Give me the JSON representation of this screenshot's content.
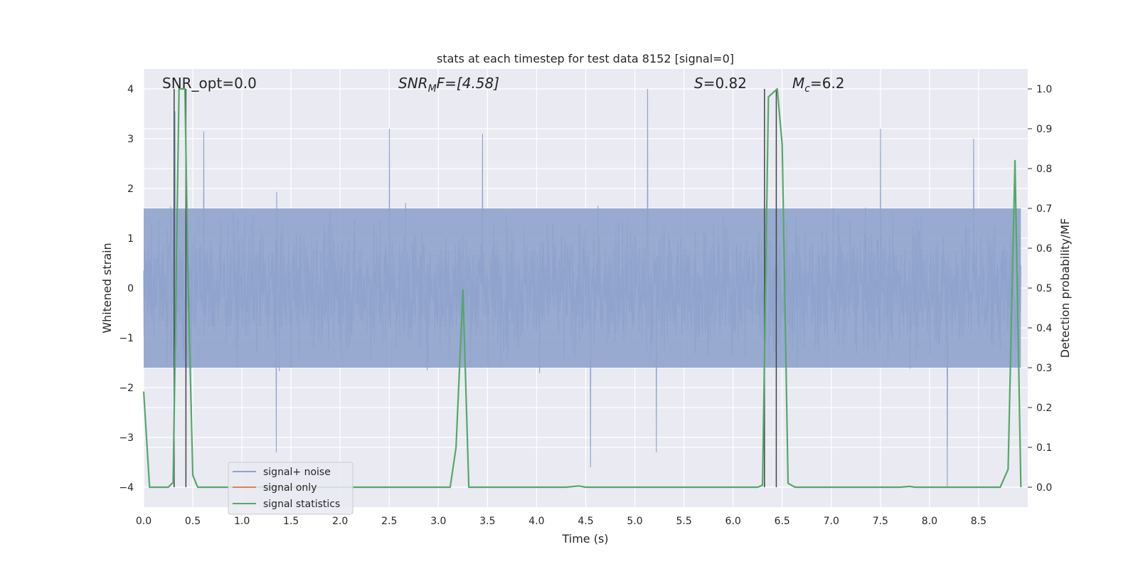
{
  "chart_data": {
    "type": "line",
    "title": "stats at each timestep for test data 8152 [signal=0]",
    "xlabel": "Time (s)",
    "ylabel_left": "Whitened strain",
    "ylabel_right": "Detection probability/MF",
    "xlim": [
      0.0,
      9.0
    ],
    "ylim_left": [
      -4.4,
      4.4
    ],
    "ylim_right": [
      -0.05,
      1.05
    ],
    "x_ticks": [
      0.0,
      0.5,
      1.0,
      1.5,
      2.0,
      2.5,
      3.0,
      3.5,
      4.0,
      4.5,
      5.0,
      5.5,
      6.0,
      6.5,
      7.0,
      7.5,
      8.0,
      8.5
    ],
    "x_tick_labels": [
      "0.0",
      "0.5",
      "1.0",
      "1.5",
      "2.0",
      "2.5",
      "3.0",
      "3.5",
      "4.0",
      "4.5",
      "5.0",
      "5.5",
      "6.0",
      "6.5",
      "7.0",
      "7.5",
      "8.0",
      "8.5"
    ],
    "y_left_ticks": [
      4,
      3,
      2,
      1,
      0,
      -1,
      -2,
      -3,
      -4
    ],
    "y_left_tick_labels": [
      "4",
      "3",
      "2",
      "1",
      "0",
      "−1",
      "−2",
      "−3",
      "−4"
    ],
    "y_right_ticks": [
      1.0,
      0.9,
      0.8,
      0.7,
      0.6,
      0.5,
      0.4,
      0.3,
      0.2,
      0.1,
      0.0
    ],
    "y_right_tick_labels": [
      "1.0",
      "0.9",
      "0.8",
      "0.7",
      "0.6",
      "0.5",
      "0.4",
      "0.3",
      "0.2",
      "0.1",
      "0.0"
    ],
    "grid": true,
    "legend_position": "lower-left",
    "annotations": {
      "snr_opt": "SNR_opt=0.0",
      "snr_mf_base": "SNR",
      "snr_mf_sub": "M",
      "snr_mf_tail": "F=[4.58]",
      "s_var": "S",
      "s_tail": "=0.82",
      "mc_var": "M",
      "mc_sub": "c",
      "mc_tail": "=6.2"
    },
    "series": [
      {
        "name": "signal+ noise",
        "color": "#8fa3cc",
        "style": "dense noise",
        "typical_band": [
          -1.6,
          1.6
        ],
        "extreme_values": [
          {
            "x": 0.32,
            "y": 3.55
          },
          {
            "x": 0.61,
            "y": 3.15
          },
          {
            "x": 1.35,
            "y": -3.3
          },
          {
            "x": 2.5,
            "y": 3.2
          },
          {
            "x": 3.45,
            "y": 3.1
          },
          {
            "x": 4.55,
            "y": -3.6
          },
          {
            "x": 5.13,
            "y": 4.0
          },
          {
            "x": 5.22,
            "y": -3.3
          },
          {
            "x": 7.5,
            "y": 3.2
          },
          {
            "x": 8.18,
            "y": -4.0
          },
          {
            "x": 8.45,
            "y": 3.0
          }
        ]
      },
      {
        "name": "signal only",
        "color": "#dd8452",
        "x": [],
        "y": []
      },
      {
        "name": "signal statistics",
        "color": "#55a868",
        "axis": "right",
        "x": [
          0.0,
          0.06,
          0.12,
          0.18,
          0.25,
          0.3,
          0.36,
          0.42,
          0.45,
          0.5,
          0.55,
          0.62,
          3.0,
          3.12,
          3.18,
          3.25,
          3.31,
          3.37,
          4.3,
          4.43,
          4.5,
          6.25,
          6.3,
          6.36,
          6.45,
          6.5,
          6.56,
          6.63,
          7.7,
          7.8,
          7.85,
          8.72,
          8.8,
          8.87,
          8.93
        ],
        "y": [
          0.24,
          0.0,
          0.0,
          0.0,
          0.0,
          0.012,
          1.0,
          1.0,
          0.54,
          0.03,
          0.0,
          0.0,
          0.0,
          0.0,
          0.1,
          0.495,
          0.0,
          0.0,
          0.0,
          0.003,
          0.0,
          0.0,
          0.005,
          0.98,
          1.0,
          0.86,
          0.01,
          0.0,
          0.0,
          0.002,
          0.0,
          0.0,
          0.045,
          0.82,
          0.0
        ]
      }
    ],
    "vertical_markers": [
      {
        "x": 0.31,
        "top_left_y": 4.0
      },
      {
        "x": 0.43,
        "top_left_y": 4.0
      },
      {
        "x": 6.32,
        "top_left_y": 4.0
      },
      {
        "x": 6.44,
        "top_left_y": 4.0
      }
    ]
  }
}
